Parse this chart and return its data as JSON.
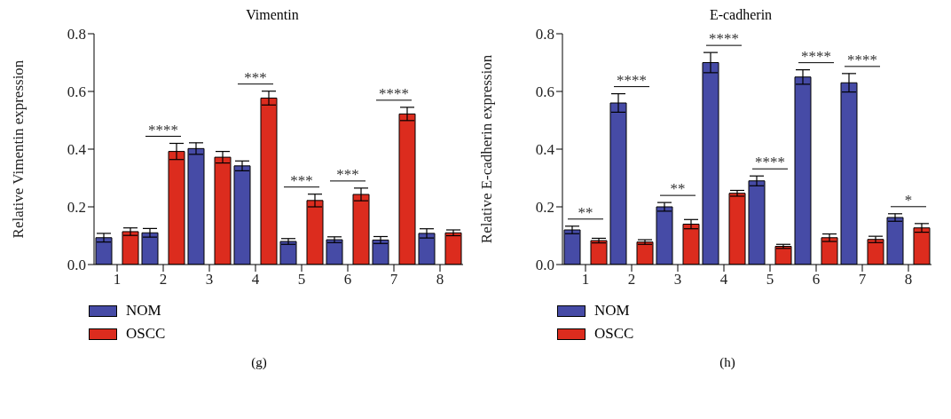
{
  "chart_data": [
    {
      "type": "bar",
      "title": "Vimentin",
      "ylabel": "Relative Vimentin expression",
      "categories": [
        "1",
        "2",
        "3",
        "4",
        "5",
        "6",
        "7",
        "8"
      ],
      "series": [
        {
          "name": "NOM",
          "color": "#464ba6",
          "values": [
            0.093,
            0.11,
            0.402,
            0.342,
            0.08,
            0.086,
            0.085,
            0.108
          ],
          "errors": [
            0.015,
            0.015,
            0.02,
            0.017,
            0.01,
            0.01,
            0.012,
            0.016
          ]
        },
        {
          "name": "OSCC",
          "color": "#dc2c1e",
          "values": [
            0.114,
            0.392,
            0.372,
            0.577,
            0.222,
            0.243,
            0.522,
            0.11
          ],
          "errors": [
            0.013,
            0.028,
            0.02,
            0.024,
            0.022,
            0.022,
            0.023,
            0.01
          ],
          "value_labels": [
            null,
            "****",
            null,
            "***",
            "***",
            "***",
            "****",
            null
          ]
        }
      ],
      "ylim": [
        0,
        0.8
      ],
      "yticks": [
        {
          "value": 0,
          "label": "0.0"
        },
        {
          "value": 0.2,
          "label": "0.2"
        },
        {
          "value": 0.4,
          "label": "0.4"
        },
        {
          "value": 0.6,
          "label": "0.6"
        },
        {
          "value": 0.8,
          "label": "0.8"
        }
      ],
      "grid": false,
      "legend": "bottom left",
      "annotations": [
        "(g)"
      ]
    },
    {
      "type": "bar",
      "title": "E-cadherin",
      "ylabel": "Relative E-cadherin expression",
      "categories": [
        "1",
        "2",
        "3",
        "4",
        "5",
        "6",
        "7",
        "8"
      ],
      "series": [
        {
          "name": "NOM",
          "color": "#464ba6",
          "values": [
            0.12,
            0.56,
            0.2,
            0.7,
            0.29,
            0.65,
            0.63,
            0.163
          ],
          "errors": [
            0.013,
            0.032,
            0.015,
            0.035,
            0.017,
            0.025,
            0.032,
            0.013
          ],
          "value_labels": [
            "**",
            "****",
            "**",
            "****",
            "****",
            "****",
            "****",
            "*"
          ]
        },
        {
          "name": "OSCC",
          "color": "#dc2c1e",
          "values": [
            0.083,
            0.078,
            0.14,
            0.247,
            0.063,
            0.093,
            0.087,
            0.127
          ],
          "errors": [
            0.008,
            0.008,
            0.016,
            0.01,
            0.007,
            0.013,
            0.011,
            0.015
          ]
        }
      ],
      "ylim": [
        0,
        0.8
      ],
      "yticks": [
        {
          "value": 0,
          "label": "0.0"
        },
        {
          "value": 0.2,
          "label": "0.2"
        },
        {
          "value": 0.4,
          "label": "0.4"
        },
        {
          "value": 0.6,
          "label": "0.6"
        },
        {
          "value": 0.8,
          "label": "0.8"
        }
      ],
      "grid": false,
      "legend": "bottom left",
      "annotations": [
        "(h)"
      ]
    }
  ]
}
